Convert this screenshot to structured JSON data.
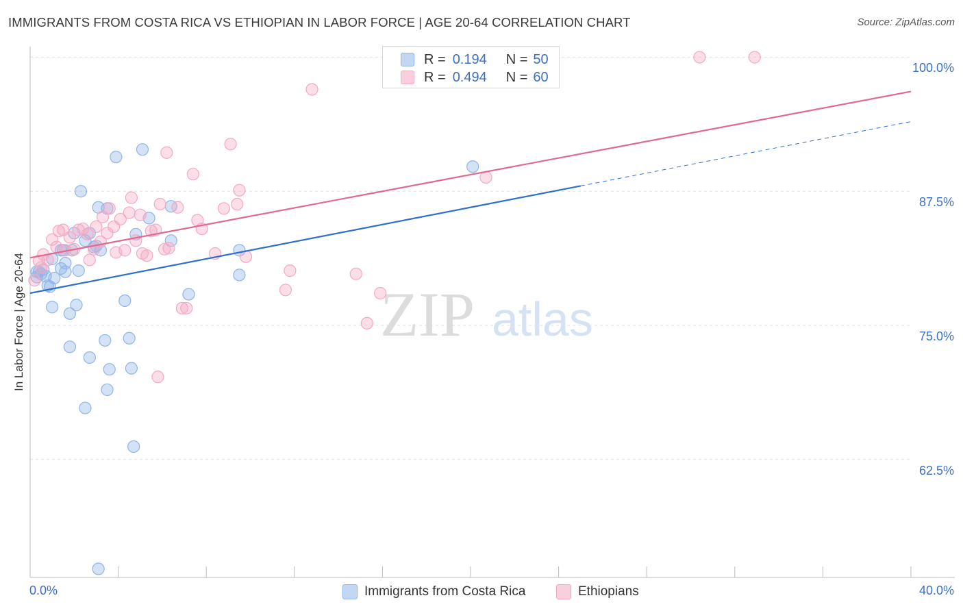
{
  "title": "IMMIGRANTS FROM COSTA RICA VS ETHIOPIAN IN LABOR FORCE | AGE 20-64 CORRELATION CHART",
  "source": "Source: ZipAtlas.com",
  "watermark": {
    "zip": "ZIP",
    "atlas": "atlas"
  },
  "legend_top": {
    "rows": [
      {
        "r_label": "R =",
        "r_value": "0.194",
        "n_label": "N =",
        "n_value": "50"
      },
      {
        "r_label": "R =",
        "r_value": "0.494",
        "n_label": "N =",
        "n_value": "60"
      }
    ]
  },
  "legend_bottom": [
    "Immigrants from Costa Rica",
    "Ethiopians"
  ],
  "chart_data": {
    "type": "scatter",
    "title": "IMMIGRANTS FROM COSTA RICA VS ETHIOPIAN IN LABOR FORCE | AGE 20-64 CORRELATION CHART",
    "xlabel": "",
    "ylabel": "In Labor Force | Age 20-64",
    "xlim": [
      0,
      40
    ],
    "ylim": [
      51.5,
      101.5
    ],
    "x_tick_labels": [
      "0.0%",
      "40.0%"
    ],
    "y_ticks": [
      62.5,
      75.0,
      87.5,
      100.0
    ],
    "y_tick_labels": [
      "62.5%",
      "75.0%",
      "87.5%",
      "100.0%"
    ],
    "grid": true,
    "legend_position": "bottom",
    "series": [
      {
        "name": "Immigrants from Costa Rica",
        "color": "#8fb4e8",
        "line_color": "#2f6fcc",
        "R": 0.194,
        "N": 50,
        "trend": {
          "x0": 0,
          "y0": 78.0,
          "x1": 25,
          "y1": 88.0,
          "dashed_to_x": 40,
          "dashed_to_y": 94.0
        },
        "points": [
          [
            0.4,
            80.0
          ],
          [
            0.6,
            80.2
          ],
          [
            0.3,
            79.5
          ],
          [
            0.7,
            79.6
          ],
          [
            0.5,
            79.8
          ],
          [
            0.8,
            78.7
          ],
          [
            0.9,
            78.6
          ],
          [
            1.4,
            82.0
          ],
          [
            1.5,
            82.0
          ],
          [
            1.9,
            82.0
          ],
          [
            2.0,
            83.6
          ],
          [
            1.6,
            80.8
          ],
          [
            1.0,
            81.2
          ],
          [
            1.1,
            79.4
          ],
          [
            1.6,
            80.0
          ],
          [
            2.2,
            80.1
          ],
          [
            2.5,
            82.9
          ],
          [
            2.7,
            83.6
          ],
          [
            2.9,
            82.3
          ],
          [
            3.0,
            82.4
          ],
          [
            3.2,
            82.0
          ],
          [
            3.1,
            86.0
          ],
          [
            3.5,
            85.9
          ],
          [
            2.3,
            87.5
          ],
          [
            3.9,
            90.7
          ],
          [
            5.1,
            91.4
          ],
          [
            5.4,
            85.0
          ],
          [
            4.8,
            83.5
          ],
          [
            6.4,
            86.1
          ],
          [
            6.4,
            82.9
          ],
          [
            9.5,
            82.0
          ],
          [
            9.5,
            79.7
          ],
          [
            7.2,
            77.9
          ],
          [
            4.3,
            77.3
          ],
          [
            2.1,
            76.9
          ],
          [
            1.0,
            76.7
          ],
          [
            1.8,
            76.1
          ],
          [
            3.4,
            73.6
          ],
          [
            4.5,
            73.8
          ],
          [
            1.8,
            73.0
          ],
          [
            2.7,
            72.0
          ],
          [
            3.6,
            70.9
          ],
          [
            4.6,
            71.0
          ],
          [
            3.5,
            69.0
          ],
          [
            2.5,
            67.3
          ],
          [
            4.7,
            63.7
          ],
          [
            3.1,
            52.3
          ],
          [
            20.1,
            89.8
          ],
          [
            0.3,
            80.0
          ],
          [
            1.4,
            80.3
          ]
        ]
      },
      {
        "name": "Ethiopians",
        "color": "#f4a8c2",
        "line_color": "#e0698f",
        "R": 0.494,
        "N": 60,
        "trend": {
          "x0": 0,
          "y0": 81.3,
          "x1": 40,
          "y1": 96.8
        },
        "points": [
          [
            0.2,
            79.2
          ],
          [
            0.5,
            80.4
          ],
          [
            0.4,
            81.0
          ],
          [
            0.6,
            81.6
          ],
          [
            0.8,
            81.1
          ],
          [
            1.0,
            83.0
          ],
          [
            1.2,
            82.3
          ],
          [
            1.3,
            83.8
          ],
          [
            1.5,
            83.9
          ],
          [
            1.8,
            83.2
          ],
          [
            2.0,
            82.1
          ],
          [
            1.6,
            82.0
          ],
          [
            2.2,
            83.9
          ],
          [
            2.4,
            84.0
          ],
          [
            2.6,
            83.5
          ],
          [
            2.7,
            81.1
          ],
          [
            2.9,
            82.1
          ],
          [
            3.0,
            84.2
          ],
          [
            3.2,
            82.8
          ],
          [
            3.3,
            85.1
          ],
          [
            3.5,
            83.6
          ],
          [
            3.6,
            85.9
          ],
          [
            3.8,
            84.2
          ],
          [
            3.9,
            81.8
          ],
          [
            4.1,
            84.9
          ],
          [
            4.3,
            82.0
          ],
          [
            4.5,
            85.5
          ],
          [
            4.6,
            86.9
          ],
          [
            4.8,
            82.9
          ],
          [
            5.0,
            85.3
          ],
          [
            5.1,
            81.7
          ],
          [
            5.3,
            81.5
          ],
          [
            5.5,
            83.8
          ],
          [
            5.7,
            83.9
          ],
          [
            5.9,
            86.3
          ],
          [
            6.1,
            82.1
          ],
          [
            6.3,
            82.2
          ],
          [
            6.7,
            86.0
          ],
          [
            6.9,
            76.6
          ],
          [
            7.1,
            76.6
          ],
          [
            7.4,
            89.1
          ],
          [
            7.6,
            84.8
          ],
          [
            7.8,
            84.0
          ],
          [
            8.4,
            81.7
          ],
          [
            8.8,
            85.9
          ],
          [
            9.1,
            91.9
          ],
          [
            9.4,
            86.3
          ],
          [
            9.5,
            87.6
          ],
          [
            9.8,
            81.4
          ],
          [
            6.2,
            91.1
          ],
          [
            5.8,
            70.2
          ],
          [
            11.6,
            78.3
          ],
          [
            11.8,
            80.1
          ],
          [
            12.8,
            97.0
          ],
          [
            14.8,
            79.8
          ],
          [
            15.3,
            75.2
          ],
          [
            15.9,
            78.0
          ],
          [
            20.7,
            88.8
          ],
          [
            30.4,
            100.0
          ],
          [
            32.9,
            100.0
          ]
        ]
      }
    ]
  }
}
